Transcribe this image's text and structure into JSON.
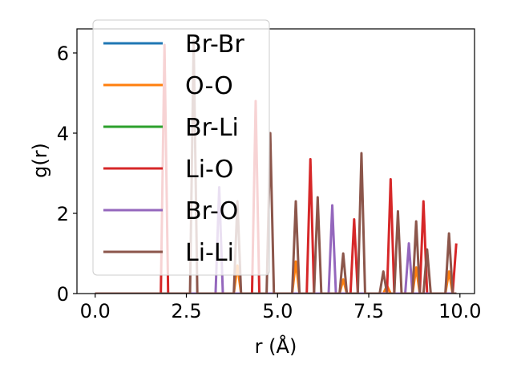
{
  "chart_data": {
    "type": "line",
    "xlabel": "r (Å)",
    "ylabel": "g(r)",
    "xlim": [
      -0.5,
      10.4
    ],
    "ylim": [
      0,
      6.6
    ],
    "x_ticks": [
      0.0,
      2.5,
      5.0,
      7.5,
      10.0
    ],
    "x_tick_labels": [
      "0.0",
      "2.5",
      "5.0",
      "7.5",
      "10.0"
    ],
    "y_ticks": [
      0,
      2,
      4,
      6
    ],
    "y_tick_labels": [
      "0",
      "2",
      "4",
      "6"
    ],
    "grid": false,
    "legend_position": "upper-left",
    "series": [
      {
        "name": "Br-Br",
        "color": "#1f77b4",
        "points": [
          [
            0.0,
            0
          ],
          [
            9.9,
            0
          ]
        ]
      },
      {
        "name": "O-O",
        "color": "#ff7f0e",
        "points": [
          [
            0.0,
            0
          ],
          [
            3.8,
            0
          ],
          [
            3.9,
            0.7
          ],
          [
            4.0,
            0
          ],
          [
            5.4,
            0
          ],
          [
            5.5,
            0.8
          ],
          [
            5.6,
            0
          ],
          [
            6.7,
            0
          ],
          [
            6.8,
            0.35
          ],
          [
            6.9,
            0
          ],
          [
            7.9,
            0
          ],
          [
            8.0,
            0.2
          ],
          [
            8.1,
            0
          ],
          [
            8.7,
            0
          ],
          [
            8.8,
            0.65
          ],
          [
            8.9,
            0
          ],
          [
            9.6,
            0
          ],
          [
            9.7,
            0.55
          ],
          [
            9.8,
            0
          ],
          [
            9.9,
            0
          ]
        ]
      },
      {
        "name": "Br-Li",
        "color": "#2ca02c",
        "points": [
          [
            0.0,
            0
          ],
          [
            9.9,
            0
          ]
        ]
      },
      {
        "name": "Li-O",
        "color": "#d62728",
        "points": [
          [
            0.0,
            0
          ],
          [
            1.8,
            0
          ],
          [
            1.9,
            6.2
          ],
          [
            2.0,
            0
          ],
          [
            4.3,
            0
          ],
          [
            4.4,
            4.8
          ],
          [
            4.5,
            0
          ],
          [
            5.8,
            0
          ],
          [
            5.9,
            3.35
          ],
          [
            6.0,
            0
          ],
          [
            7.0,
            0
          ],
          [
            7.1,
            1.85
          ],
          [
            7.2,
            0
          ],
          [
            8.0,
            0
          ],
          [
            8.1,
            2.85
          ],
          [
            8.2,
            0
          ],
          [
            8.9,
            0
          ],
          [
            9.0,
            2.3
          ],
          [
            9.1,
            0
          ],
          [
            9.8,
            0
          ],
          [
            9.9,
            1.25
          ]
        ]
      },
      {
        "name": "Br-O",
        "color": "#9467bd",
        "points": [
          [
            0.0,
            0
          ],
          [
            3.3,
            0
          ],
          [
            3.4,
            2.65
          ],
          [
            3.5,
            0
          ],
          [
            6.4,
            0
          ],
          [
            6.5,
            2.2
          ],
          [
            6.6,
            0
          ],
          [
            8.5,
            0
          ],
          [
            8.6,
            1.25
          ],
          [
            8.7,
            0
          ],
          [
            9.9,
            0
          ]
        ]
      },
      {
        "name": "Li-Li",
        "color": "#8c564b",
        "points": [
          [
            0.0,
            0
          ],
          [
            2.6,
            0
          ],
          [
            2.7,
            6.3
          ],
          [
            2.8,
            0
          ],
          [
            3.8,
            0
          ],
          [
            3.9,
            2.3
          ],
          [
            4.0,
            0
          ],
          [
            4.7,
            0
          ],
          [
            4.8,
            4.0
          ],
          [
            4.9,
            0
          ],
          [
            5.4,
            0
          ],
          [
            5.5,
            2.3
          ],
          [
            5.6,
            0
          ],
          [
            6.0,
            0
          ],
          [
            6.1,
            2.4
          ],
          [
            6.2,
            0
          ],
          [
            6.7,
            0
          ],
          [
            6.8,
            1.0
          ],
          [
            6.9,
            0
          ],
          [
            7.2,
            0
          ],
          [
            7.3,
            3.5
          ],
          [
            7.4,
            0
          ],
          [
            7.8,
            0
          ],
          [
            7.9,
            0.55
          ],
          [
            8.0,
            0
          ],
          [
            8.2,
            0
          ],
          [
            8.3,
            2.05
          ],
          [
            8.4,
            0
          ],
          [
            8.7,
            0
          ],
          [
            8.8,
            1.8
          ],
          [
            8.9,
            0
          ],
          [
            9.0,
            0
          ],
          [
            9.1,
            1.1
          ],
          [
            9.2,
            0
          ],
          [
            9.6,
            0
          ],
          [
            9.7,
            1.5
          ],
          [
            9.8,
            0
          ],
          [
            9.9,
            0
          ]
        ]
      }
    ]
  }
}
